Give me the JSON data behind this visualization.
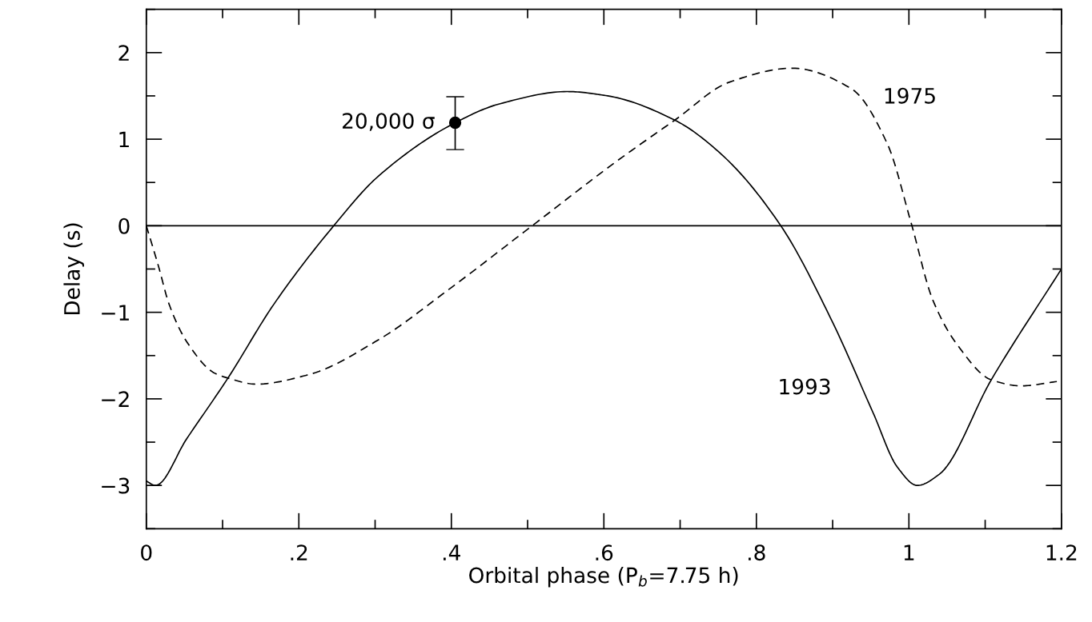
{
  "chart_data": {
    "type": "line",
    "xlabel": "Orbital phase (P$_{b}$=7.75 h)",
    "ylabel": "Delay (s)",
    "xlim": [
      0,
      1.2
    ],
    "ylim": [
      -3.5,
      2.5
    ],
    "xticks": [
      0,
      {
        "value": 0.1,
        "label": null
      },
      {
        "value": 0.2,
        "label": ".2"
      },
      {
        "value": 0.3,
        "label": null
      },
      {
        "value": 0.4,
        "label": ".4"
      },
      {
        "value": 0.5,
        "label": null
      },
      {
        "value": 0.6,
        "label": ".6"
      },
      {
        "value": 0.7,
        "label": null
      },
      {
        "value": 0.8,
        "label": ".8"
      },
      {
        "value": 0.9,
        "label": null
      },
      1,
      {
        "value": 1.1,
        "label": null
      },
      1.2
    ],
    "yticks": [
      {
        "value": -3.5,
        "label": null
      },
      {
        "value": -3,
        "label": "−3"
      },
      {
        "value": -2.5,
        "label": null
      },
      {
        "value": -2,
        "label": "−2"
      },
      {
        "value": -1.5,
        "label": null
      },
      {
        "value": -1,
        "label": "−1"
      },
      {
        "value": -0.5,
        "label": null
      },
      0,
      {
        "value": 0.5,
        "label": null
      },
      1,
      {
        "value": 1.5,
        "label": null
      },
      2,
      {
        "value": 2.5,
        "label": null
      }
    ],
    "grid": false,
    "legend": false,
    "ref_lines": [
      {
        "axis": "y",
        "value": 0,
        "color": "#000000",
        "line_style": "solid"
      }
    ],
    "series": [
      {
        "name": "1993",
        "color": "#000000",
        "line_style": "solid",
        "marker": "none",
        "x": [
          0,
          0.012,
          0.053,
          0.107,
          0.167,
          0.243,
          0.304,
          0.405,
          0.464,
          0.552,
          0.605,
          0.693,
          0.756,
          0.832,
          0.898,
          0.953,
          0.985,
          1.011,
          1.04,
          1.108,
          1.2
        ],
        "values": [
          -2.95,
          -3.0,
          -2.46,
          -1.76,
          -0.91,
          -0.03,
          0.57,
          1.19,
          1.41,
          1.55,
          1.5,
          1.22,
          0.81,
          0,
          -1.08,
          -2.16,
          -2.79,
          -3.0,
          -2.87,
          -1.78,
          -0.5
        ]
      },
      {
        "name": "1975",
        "color": "#000000",
        "line_style": "dashed",
        "marker": "none",
        "x": [
          0,
          0.016,
          0.03,
          0.053,
          0.089,
          0.107,
          0.144,
          0.213,
          0.304,
          0.396,
          0.506,
          0.616,
          0.693,
          0.765,
          0.847,
          0.925,
          0.972,
          1.003,
          1.031,
          1.063,
          1.108,
          1.147,
          1.194
        ],
        "values": [
          0,
          -0.47,
          -0.91,
          -1.34,
          -1.7,
          -1.76,
          -1.83,
          -1.72,
          -1.32,
          -0.74,
          0,
          0.74,
          1.22,
          1.66,
          1.82,
          1.58,
          0.94,
          0.03,
          -0.85,
          -1.37,
          -1.78,
          -1.85,
          -1.8
        ]
      },
      {
        "type": "scatter",
        "color": "#000000",
        "marker": "circle",
        "x": [
          0.405
        ],
        "values": [
          1.19
        ],
        "errors": [
          [
            0.88,
            1.49
          ]
        ]
      }
    ],
    "annotations": [
      {
        "text": "20,000 σ",
        "x": 0.405,
        "y": 1.19
      }
    ]
  }
}
